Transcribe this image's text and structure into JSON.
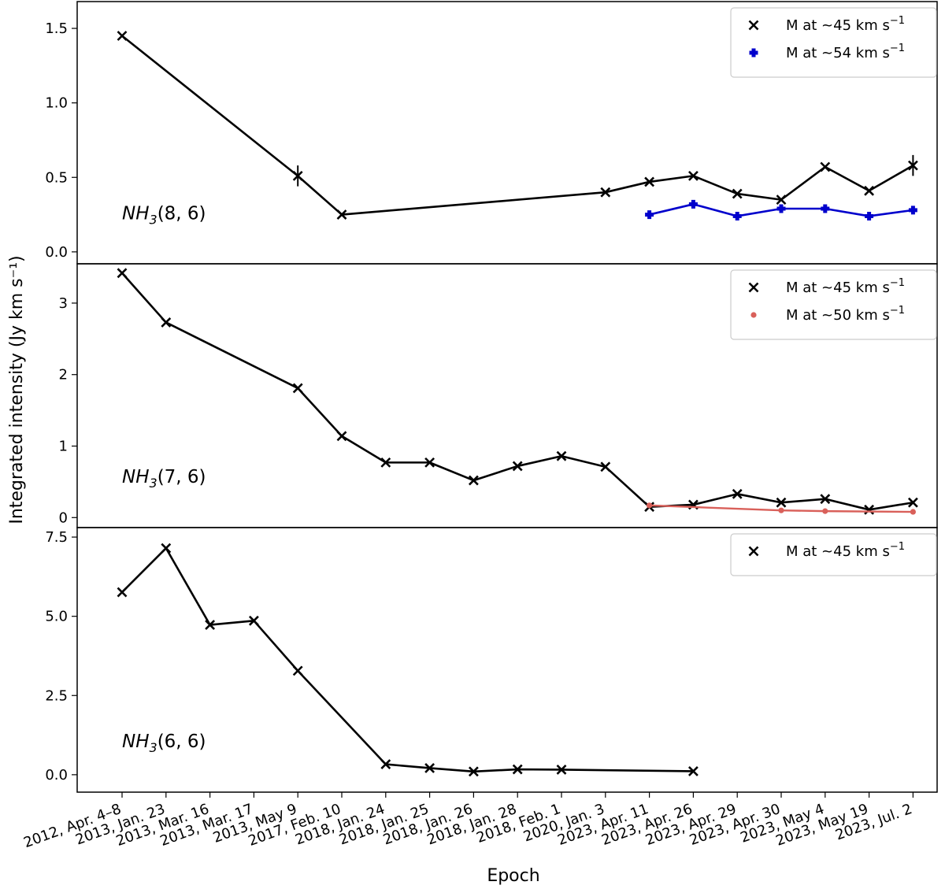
{
  "chart_data": {
    "type": "line",
    "ylabel": "Integrated intensity (Jy km s⁻¹)",
    "xlabel": "Epoch",
    "categories": [
      "2012, Apr. 4–8",
      "2013, Jan. 23",
      "2013, Mar. 16",
      "2013, Mar. 17",
      "2013, May 9",
      "2017, Feb. 10",
      "2018, Jan. 24",
      "2018, Jan. 25",
      "2018, Jan. 26",
      "2018, Jan. 28",
      "2018, Feb. 1",
      "2020, Jan. 3",
      "2023, Apr. 11",
      "2023, Apr. 26",
      "2023, Apr. 29",
      "2023, Apr. 30",
      "2023, May 4",
      "2023, May 19",
      "2023, Jul. 2"
    ],
    "panels": [
      {
        "label": "NH3(8,6)",
        "label_main": "NH",
        "label_sub": "3",
        "label_args": "(8, 6)",
        "ylim": [
          -0.08,
          1.68
        ],
        "yticks": [
          0.0,
          0.5,
          1.0,
          1.5
        ],
        "ytick_labels": [
          "0.0",
          "0.5",
          "1.0",
          "1.5"
        ],
        "legend_position": "top-right",
        "series": [
          {
            "name": "M at ~45 km s⁻¹",
            "legend_main": "M at ~45 km s",
            "legend_sup": "−1",
            "marker": "x",
            "color": "#000000",
            "x": [
              0,
              4,
              5,
              11,
              12,
              13,
              14,
              15,
              16,
              17,
              18
            ],
            "values": [
              1.45,
              0.51,
              0.25,
              0.4,
              0.47,
              0.51,
              0.39,
              0.35,
              0.57,
              0.41,
              0.58
            ],
            "errors": [
              0.0,
              0.07,
              0.0,
              0.0,
              0.0,
              0.0,
              0.0,
              0.0,
              0.0,
              0.0,
              0.07
            ]
          },
          {
            "name": "M at ~54 km s⁻¹",
            "legend_main": "M at ~54 km s",
            "legend_sup": "−1",
            "marker": "plus",
            "color": "#0000cc",
            "x": [
              12,
              13,
              14,
              15,
              16,
              17,
              18
            ],
            "values": [
              0.25,
              0.32,
              0.24,
              0.29,
              0.29,
              0.24,
              0.28
            ],
            "errors": [
              0.0,
              0.0,
              0.0,
              0.0,
              0.0,
              0.0,
              0.0
            ]
          }
        ]
      },
      {
        "label": "NH3(7,6)",
        "label_main": "NH",
        "label_sub": "3",
        "label_args": "(7, 6)",
        "ylim": [
          -0.14,
          3.55
        ],
        "yticks": [
          0,
          1,
          2,
          3
        ],
        "ytick_labels": [
          "0",
          "1",
          "2",
          "3"
        ],
        "legend_position": "top-right",
        "series": [
          {
            "name": "M at ~45 km s⁻¹",
            "legend_main": "M at ~45 km s",
            "legend_sup": "−1",
            "marker": "x",
            "color": "#000000",
            "x": [
              0,
              1,
              4,
              5,
              6,
              7,
              8,
              9,
              10,
              11,
              12,
              13,
              14,
              15,
              16,
              17,
              18
            ],
            "values": [
              3.42,
              2.73,
              1.81,
              1.14,
              0.77,
              0.77,
              0.52,
              0.72,
              0.86,
              0.71,
              0.15,
              0.18,
              0.33,
              0.21,
              0.26,
              0.11,
              0.21
            ],
            "errors": [
              0.0,
              0.0,
              0.0,
              0.0,
              0.0,
              0.0,
              0.0,
              0.0,
              0.0,
              0.0,
              0.0,
              0.0,
              0.0,
              0.0,
              0.0,
              0.0,
              0.0
            ]
          },
          {
            "name": "M at ~50 km s⁻¹",
            "legend_main": "M at ~50 km s",
            "legend_sup": "−1",
            "marker": "dot",
            "color": "#d9605a",
            "x": [
              12,
              15,
              16,
              18
            ],
            "values": [
              0.17,
              0.1,
              0.09,
              0.08
            ],
            "errors": [
              0.0,
              0.0,
              0.0,
              0.0
            ]
          }
        ]
      },
      {
        "label": "NH3(6,6)",
        "label_main": "NH",
        "label_sub": "3",
        "label_args": "(6, 6)",
        "ylim": [
          -0.55,
          7.8
        ],
        "yticks": [
          0.0,
          2.5,
          5.0,
          7.5
        ],
        "ytick_labels": [
          "0.0",
          "2.5",
          "5.0",
          "7.5"
        ],
        "legend_position": "top-right",
        "series": [
          {
            "name": "M at ~45 km s⁻¹",
            "legend_main": "M at ~45 km s",
            "legend_sup": "−1",
            "marker": "x",
            "color": "#000000",
            "x": [
              0,
              1,
              2,
              3,
              4,
              6,
              7,
              8,
              9,
              10,
              13
            ],
            "values": [
              5.76,
              7.15,
              4.73,
              4.86,
              3.28,
              0.33,
              0.21,
              0.1,
              0.17,
              0.16,
              0.11
            ],
            "errors": [
              0.0,
              0.0,
              0.0,
              0.0,
              0.0,
              0.0,
              0.0,
              0.0,
              0.0,
              0.0,
              0.0
            ]
          }
        ]
      }
    ]
  }
}
